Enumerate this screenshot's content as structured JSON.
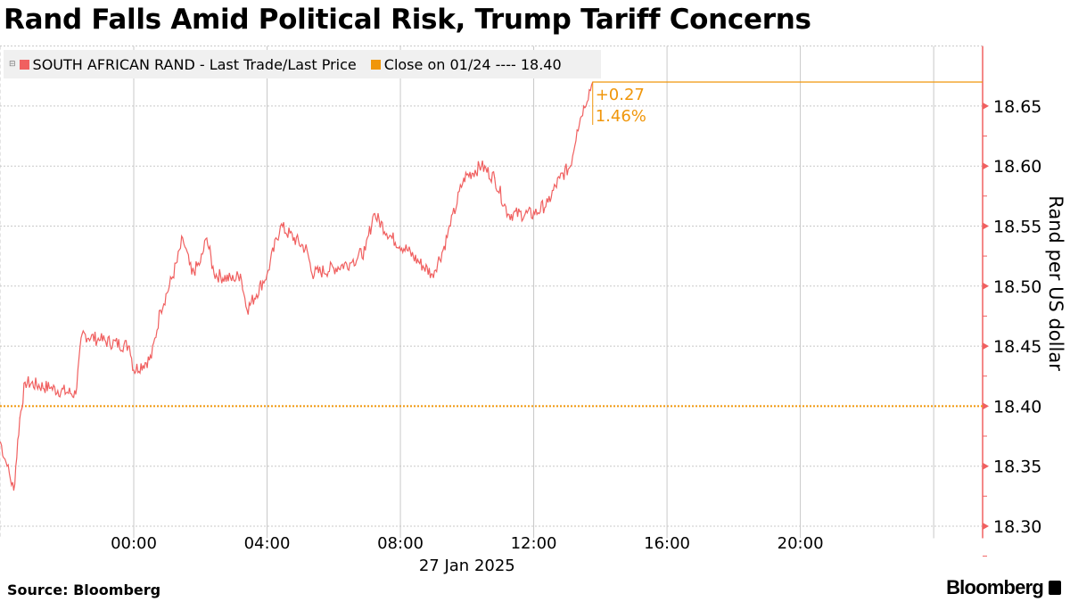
{
  "title": "Rand Falls Amid Political Risk, Trump Tariff Concerns",
  "legend": [
    {
      "label": "SOUTH AFRICAN RAND - Last Trade/Last Price",
      "color": "#f06060"
    },
    {
      "label": "Close on 01/24 ---- 18.40",
      "color": "#f0960a"
    }
  ],
  "annotation": {
    "change": "+0.27",
    "percent": "1.46%"
  },
  "footer": {
    "source": "Source: Bloomberg",
    "logo": "Bloomberg"
  },
  "chart_data": {
    "type": "line",
    "title": "Rand Falls Amid Political Risk, Trump Tariff Concerns",
    "ylabel": "Rand per US dollar",
    "xlabel": "27 Jan 2025",
    "ylim": [
      18.29,
      18.7
    ],
    "xlim_hours": [
      -4.0,
      25.5
    ],
    "y_ticks": [
      "18.30",
      "18.35",
      "18.40",
      "18.45",
      "18.50",
      "18.55",
      "18.60",
      "18.65"
    ],
    "y_tick_values": [
      18.3,
      18.35,
      18.4,
      18.45,
      18.5,
      18.55,
      18.6,
      18.65
    ],
    "x_ticks": [
      "00:00",
      "04:00",
      "08:00",
      "12:00",
      "16:00",
      "20:00"
    ],
    "x_tick_hours": [
      0,
      4,
      8,
      12,
      16,
      20
    ],
    "reference_line": {
      "label": "Close on 01/24",
      "value": 18.4
    },
    "last_value": 18.67,
    "series": [
      {
        "name": "SOUTH AFRICAN RAND - Last Trade/Last Price",
        "x_hours": [
          -4.0,
          -3.8,
          -3.6,
          -3.42,
          -3.26,
          -2.5,
          -1.74,
          -1.55,
          -1.0,
          -0.13,
          0,
          0.53,
          0.8,
          1.07,
          1.3,
          1.47,
          1.74,
          2.0,
          2.19,
          2.41,
          3.0,
          3.2,
          3.4,
          4.0,
          4.4,
          5.2,
          5.35,
          6.0,
          6.55,
          6.95,
          7.2,
          7.75,
          8.2,
          8.55,
          8.96,
          9.28,
          9.5,
          9.9,
          10.43,
          10.83,
          11.23,
          12.03,
          12.43,
          12.78,
          13.1,
          13.3,
          13.5,
          13.77
        ],
        "values": [
          18.37,
          18.35,
          18.33,
          18.39,
          18.42,
          18.415,
          18.41,
          18.46,
          18.455,
          18.45,
          18.43,
          18.44,
          18.48,
          18.5,
          18.52,
          18.54,
          18.51,
          18.52,
          18.54,
          18.51,
          18.505,
          18.51,
          18.48,
          18.51,
          18.55,
          18.53,
          18.51,
          18.515,
          18.52,
          18.53,
          18.56,
          18.54,
          18.53,
          18.52,
          18.51,
          18.53,
          18.55,
          18.59,
          18.6,
          18.59,
          18.56,
          18.56,
          18.57,
          18.59,
          18.6,
          18.63,
          18.65,
          18.67
        ]
      }
    ]
  }
}
